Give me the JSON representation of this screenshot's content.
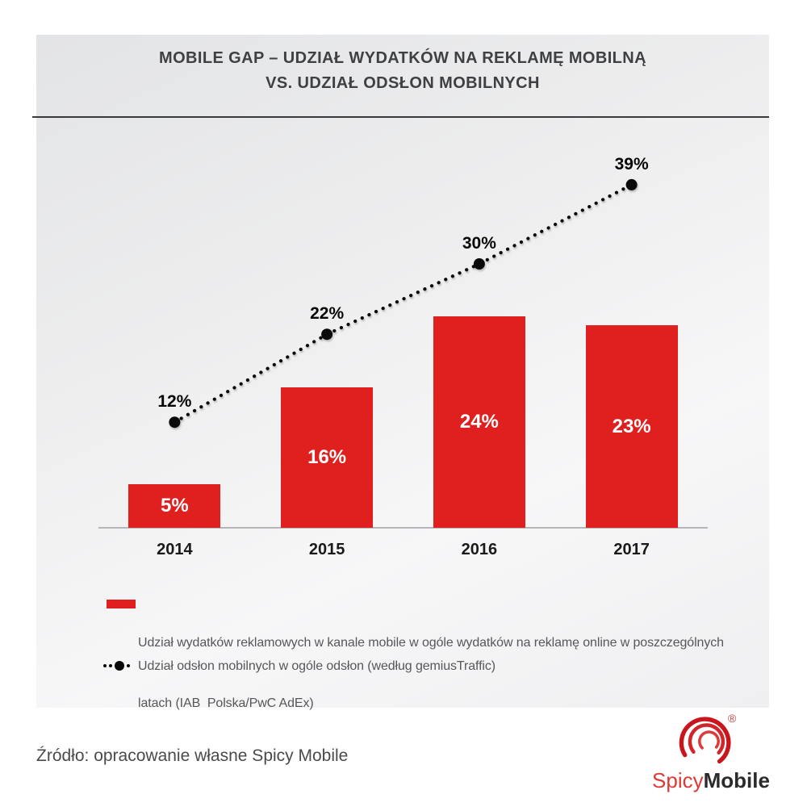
{
  "title": {
    "lines": [
      "MOBILE GAP – UDZIAŁ WYDATKÓW NA REKLAMĘ MOBILNĄ",
      "VS. UDZIAŁ ODSŁON MOBILNYCH"
    ]
  },
  "chart_data": {
    "type": "bar+line",
    "categories": [
      "2014",
      "2015",
      "2016",
      "2017"
    ],
    "series": [
      {
        "name": "Udział wydatków reklamowych w kanale mobile w ogóle wydatków na reklamę online w poszczególnych latach (IAB Polska/PwC AdEx)",
        "type": "bar",
        "values": [
          5,
          16,
          24,
          23
        ],
        "labels": [
          "5%",
          "16%",
          "24%",
          "23%"
        ],
        "color": "#e0201f"
      },
      {
        "name": "Udział odsłon mobilnych w ogóle odsłon (według gemiusTraffic)",
        "type": "dotted-line",
        "values": [
          12,
          22,
          30,
          39
        ],
        "labels": [
          "12%",
          "22%",
          "30%",
          "39%"
        ],
        "color": "#0a0a0a"
      }
    ],
    "ylim": [
      0,
      45
    ],
    "xlabel": "",
    "ylabel": "",
    "grid": false,
    "y_axis_visible": false,
    "legend_position": "bottom"
  },
  "legend": {
    "items": [
      {
        "swatch": "red-bar",
        "lines": [
          "Udział wydatków reklamowych w kanale mobile w ogóle wydatków na reklamę online w poszczególnych",
          "latach (IAB  Polska/PwC AdEx)"
        ]
      },
      {
        "swatch": "dotted-line",
        "lines": [
          "Udział odsłon mobilnych w ogóle odsłon (według gemiusTraffic)"
        ]
      }
    ]
  },
  "footer": {
    "source": "Źródło: opracowanie własne Spicy Mobile"
  },
  "logo": {
    "text_red": "Spicy",
    "text_dark": "Mobile",
    "registered": "®"
  },
  "colors": {
    "bar_red": "#e0201f",
    "line_black": "#0a0a0a",
    "title_text": "#3f4043",
    "legend_text": "#56575a",
    "source_text": "#4a4a4b",
    "divider": "#3a3a3c",
    "axis_line": "#b6b6b9",
    "year_label": "#1a1a1a",
    "panel_bg_top": "#e3e4e6",
    "panel_bg_bottom": "#efeff1"
  }
}
